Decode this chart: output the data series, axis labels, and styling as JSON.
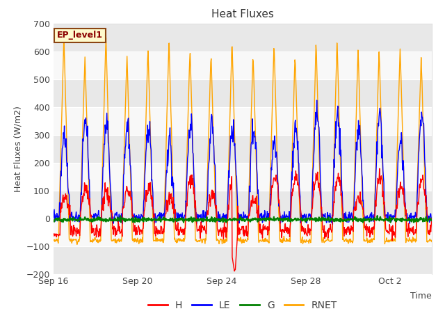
{
  "title": "Heat Fluxes",
  "xlabel": "Time",
  "ylabel": "Heat Fluxes (W/m2)",
  "ylim": [
    -200,
    700
  ],
  "yticks": [
    -200,
    -100,
    0,
    100,
    200,
    300,
    400,
    500,
    600,
    700
  ],
  "xtick_labels": [
    "Sep 16",
    "Sep 20",
    "Sep 24",
    "Sep 28",
    "Oct 2"
  ],
  "xtick_positions": [
    0,
    4,
    8,
    12,
    16
  ],
  "legend_labels": [
    "H",
    "LE",
    "G",
    "RNET"
  ],
  "legend_colors": [
    "red",
    "blue",
    "green",
    "orange"
  ],
  "annotation_text": "EP_level1",
  "annotation_color": "#8B0000",
  "annotation_bg": "#FFFACD",
  "annotation_border": "#8B4513",
  "plot_bg_light": "#F5F5F5",
  "plot_bg_dark": "#E8E8E8",
  "n_days": 18,
  "dt_hours": 0.5,
  "line_width": 1.0,
  "title_fontsize": 11,
  "tick_fontsize": 9,
  "label_fontsize": 9
}
